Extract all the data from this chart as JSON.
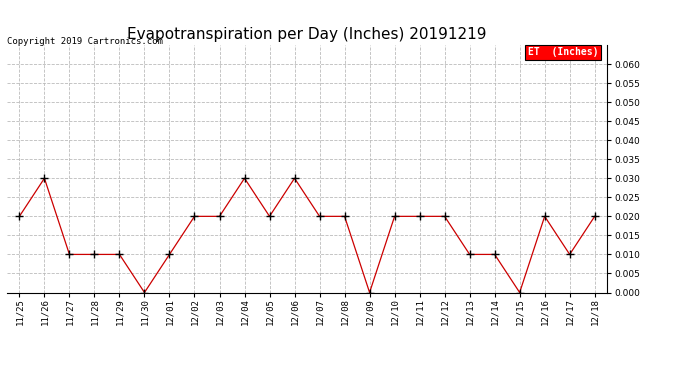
{
  "title": "Evapotranspiration per Day (Inches) 20191219",
  "copyright_text": "Copyright 2019 Cartronics.com",
  "legend_label": "ET  (Inches)",
  "legend_bg": "#ff0000",
  "legend_text_color": "#ffffff",
  "dates": [
    "11/25",
    "11/26",
    "11/27",
    "11/28",
    "11/29",
    "11/30",
    "12/01",
    "12/02",
    "12/03",
    "12/04",
    "12/05",
    "12/06",
    "12/07",
    "12/08",
    "12/09",
    "12/10",
    "12/11",
    "12/12",
    "12/13",
    "12/14",
    "12/15",
    "12/16",
    "12/17",
    "12/18"
  ],
  "values": [
    0.02,
    0.03,
    0.01,
    0.01,
    0.01,
    0.0,
    0.01,
    0.02,
    0.02,
    0.03,
    0.02,
    0.03,
    0.02,
    0.02,
    0.0,
    0.02,
    0.02,
    0.02,
    0.01,
    0.01,
    0.0,
    0.02,
    0.01,
    0.02
  ],
  "line_color": "#cc0000",
  "marker": "+",
  "marker_color": "#000000",
  "ylim": [
    0.0,
    0.065
  ],
  "yticks": [
    0.0,
    0.005,
    0.01,
    0.015,
    0.02,
    0.025,
    0.03,
    0.035,
    0.04,
    0.045,
    0.05,
    0.055,
    0.06
  ],
  "grid_color": "#bbbbbb",
  "grid_style": "--",
  "bg_color": "#ffffff",
  "title_fontsize": 11,
  "tick_fontsize": 6.5,
  "copyright_fontsize": 6.5
}
